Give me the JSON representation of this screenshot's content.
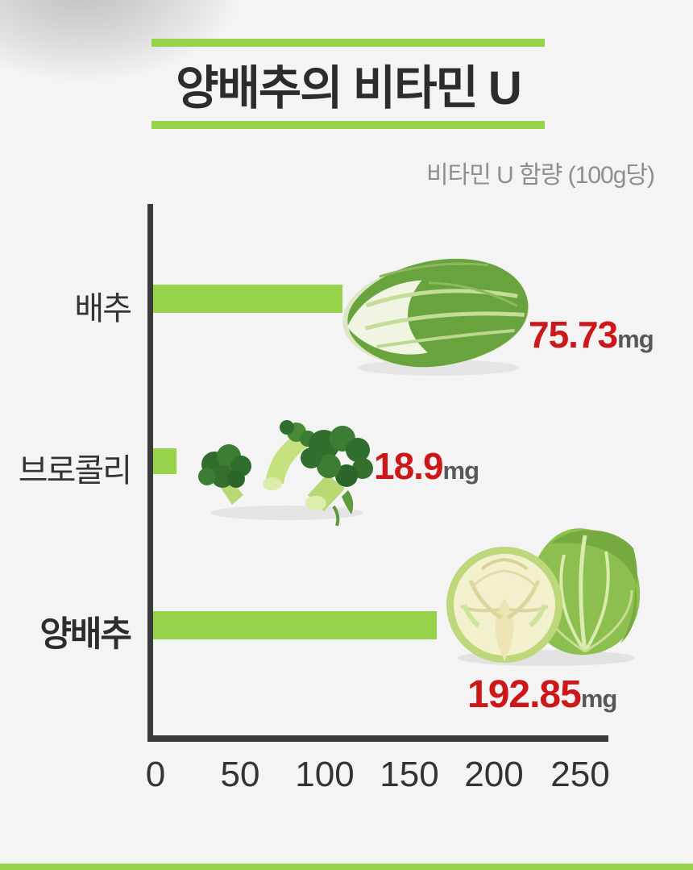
{
  "page": {
    "accent_green": "#97d24b",
    "value_red": "#cd1719",
    "background": "#f4f4f4"
  },
  "header": {
    "title": "양배추의 비타민 U",
    "subtitle": "비타민 U 함량 (100g당)"
  },
  "chart_data": {
    "type": "bar",
    "orientation": "horizontal",
    "title": "양배추의 비타민 U",
    "subtitle_note": "비타민 U 함량 (100g당)",
    "categories": [
      "배추",
      "브로콜리",
      "양배추"
    ],
    "values": [
      75.73,
      18.9,
      192.85
    ],
    "unit": "mg",
    "xlim": [
      0,
      250
    ],
    "xticks": [
      "0",
      "50",
      "100",
      "150",
      "200",
      "250"
    ],
    "grid": false,
    "legend": false,
    "rows": [
      {
        "label": "배추",
        "value": "75.73",
        "unit": "mg",
        "bar_px": "235",
        "image": "napa-cabbage"
      },
      {
        "label": "브로콜리",
        "value": "18.9",
        "unit": "mg",
        "bar_px": "29",
        "image": "broccoli"
      },
      {
        "label": "양배추",
        "value": "192.85",
        "unit": "mg",
        "bar_px": "352",
        "image": "cabbage"
      }
    ]
  }
}
